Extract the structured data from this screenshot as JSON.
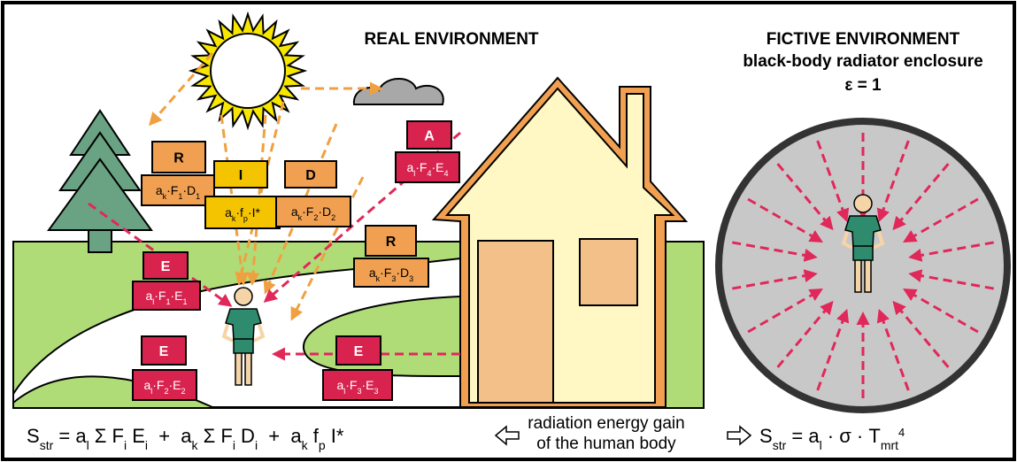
{
  "real_title": "REAL ENVIRONMENT",
  "fictive": {
    "title": "FICTIVE ENVIRONMENT",
    "subtitle": "black-body radiator enclosure",
    "emissivity": "ε = 1"
  },
  "boxes": [
    {
      "label": "R",
      "formula": [
        "a",
        "k",
        "·F",
        "1",
        "·D",
        "1"
      ]
    },
    {
      "label": "I",
      "formula": [
        "a",
        "k",
        "·f",
        "p",
        "·I*"
      ]
    },
    {
      "label": "D",
      "formula": [
        "a",
        "k",
        "·F",
        "2",
        "·D",
        "2"
      ]
    },
    {
      "label": "A",
      "formula": [
        "a",
        "l",
        "·F",
        "4",
        "·E",
        "4"
      ]
    },
    {
      "label": "R",
      "formula": [
        "a",
        "k",
        "·F",
        "3",
        "·D",
        "3"
      ]
    },
    {
      "label": "E",
      "formula": [
        "a",
        "l",
        "·F",
        "1",
        "·E",
        "1"
      ]
    },
    {
      "label": "E",
      "formula": [
        "a",
        "l",
        "·F",
        "2",
        "·E",
        "2"
      ]
    },
    {
      "label": "E",
      "formula": [
        "a",
        "l",
        "·F",
        "3",
        "·E",
        "3"
      ]
    }
  ],
  "formula_left": [
    "S",
    "str",
    " = a",
    "l",
    " Σ F",
    "i",
    " E",
    "i",
    "  +  a",
    "k",
    " Σ F",
    "i",
    " D",
    "i",
    "  +  a",
    "k",
    " f",
    "p",
    " I*"
  ],
  "caption": [
    "radiation energy gain",
    "of the human body"
  ],
  "formula_right": {
    "parts": [
      "S",
      "str",
      " = a",
      "l",
      " · σ · T",
      "mrt"
    ],
    "exponent": "4"
  }
}
